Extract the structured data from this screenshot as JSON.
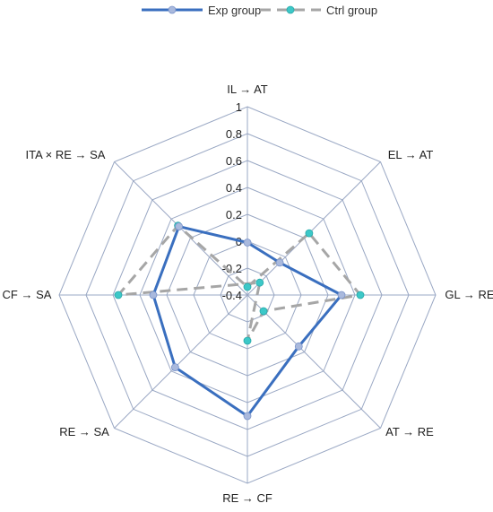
{
  "chart_data": {
    "type": "radar",
    "axes": [
      "IL → AT",
      "EL → AT",
      "GL → RE",
      "AT → RE",
      "RE → CF",
      "RE → SA",
      "CF → SA",
      "ITA × RE → SA"
    ],
    "rmin": -0.4,
    "rmax": 1,
    "ticks": [
      "1",
      "0.8",
      "0.6",
      "0.4",
      "0.2",
      "0",
      "-0.2",
      "-0.4"
    ],
    "series": [
      {
        "name": "Exp group",
        "values": [
          -0.01,
          -0.06,
          0.3,
          0.14,
          0.5,
          0.36,
          0.3,
          0.32
        ],
        "color": "#3a6fbf",
        "marker": "#a9b9dd",
        "dashed": false
      },
      {
        "name": "Ctrl group",
        "values": [
          -0.34,
          0.25,
          0.44,
          -0.23,
          -0.06,
          -0.53,
          0.56,
          0.33
        ],
        "color": "#a6a6a6",
        "marker": "#3cc8c8",
        "dashed": true
      }
    ],
    "legend_position": "top"
  }
}
